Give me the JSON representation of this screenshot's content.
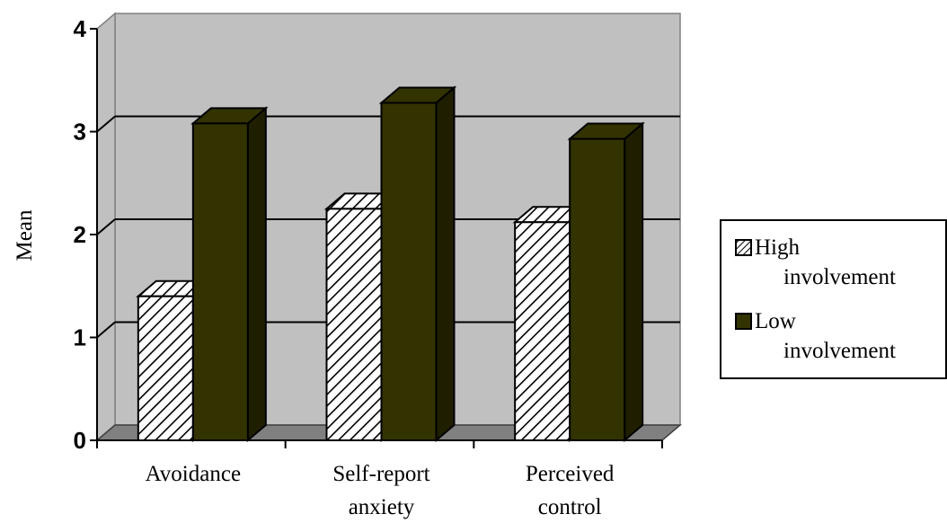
{
  "chart_data": {
    "type": "bar",
    "style": "3d-clustered-column",
    "categories": [
      [
        "Avoidance"
      ],
      [
        "Self-report",
        "anxiety"
      ],
      [
        "Perceived",
        "control"
      ]
    ],
    "series": [
      {
        "name": [
          "High",
          "involvement"
        ],
        "values": [
          1.4,
          2.25,
          2.12
        ],
        "fill": "hatched"
      },
      {
        "name": [
          "Low",
          "involvement"
        ],
        "values": [
          3.08,
          3.28,
          2.93
        ],
        "fill": "#333300"
      }
    ],
    "xlabel": "",
    "ylabel": "Mean",
    "ylim": [
      0,
      4
    ],
    "yticks": [
      "0",
      "1",
      "2",
      "3",
      "4"
    ],
    "grid": true,
    "legend": "right",
    "colors": {
      "wall": "#c0c0c0",
      "floor": "#808080",
      "low_front": "#333300",
      "low_side": "#1f1f00",
      "gridline": "#000000"
    }
  }
}
